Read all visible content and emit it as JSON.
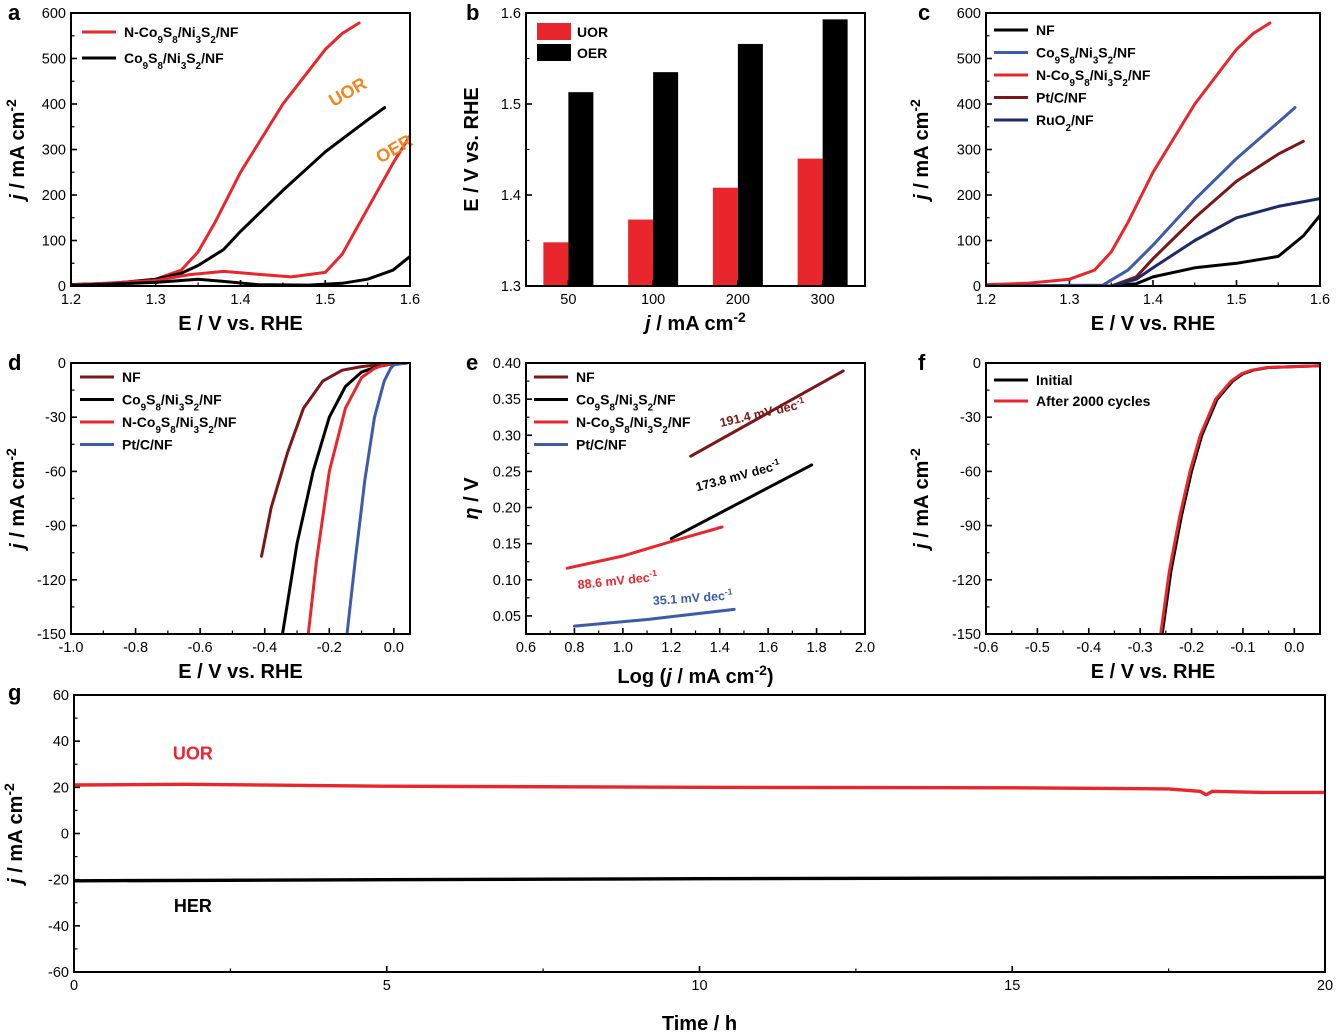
{
  "colors": {
    "red": "#e8262b",
    "black": "#000000",
    "blue": "#3d5ba9",
    "darkred": "#7b1718",
    "navy": "#1f2a6b",
    "orange": "#f0861e"
  },
  "chart_data": [
    {
      "id": "a",
      "panel": "a",
      "type": "line",
      "xlabel": "E / V vs. RHE",
      "ylabel": "j / mA cm-2",
      "xlim": [
        1.2,
        1.6
      ],
      "ylim": [
        0,
        600
      ],
      "xticks": [
        "1.2",
        "1.3",
        "1.4",
        "1.5",
        "1.6"
      ],
      "yticks": [
        "0",
        "100",
        "200",
        "300",
        "400",
        "500",
        "600"
      ],
      "legend_position": "top-left",
      "annotations": [
        {
          "text": "UOR",
          "x": 1.53,
          "y": 415,
          "color": "orange"
        },
        {
          "text": "OER",
          "x": 1.585,
          "y": 290,
          "color": "orange"
        }
      ],
      "series": [
        {
          "name": "N-Co9S8/Ni3S2/NF",
          "color": "red",
          "x": [
            1.2,
            1.25,
            1.3,
            1.33,
            1.35,
            1.37,
            1.4,
            1.45,
            1.5,
            1.52,
            1.54
          ],
          "y": [
            3,
            6,
            15,
            35,
            75,
            140,
            250,
            400,
            520,
            555,
            578
          ]
        },
        {
          "name": "Co9S8/Ni3S2/NF",
          "color": "black",
          "x": [
            1.2,
            1.25,
            1.3,
            1.33,
            1.35,
            1.38,
            1.4,
            1.45,
            1.5,
            1.55,
            1.57
          ],
          "y": [
            3,
            6,
            15,
            28,
            45,
            80,
            120,
            210,
            295,
            365,
            392
          ]
        },
        {
          "name": "N-Co9S8/Ni3S2/NF (OER)",
          "color": "red",
          "x": [
            1.2,
            1.3,
            1.34,
            1.38,
            1.42,
            1.46,
            1.5,
            1.52,
            1.55,
            1.58,
            1.6
          ],
          "y": [
            2,
            12,
            25,
            32,
            26,
            20,
            30,
            70,
            170,
            270,
            330
          ]
        },
        {
          "name": "Co9S8/Ni3S2/NF (OER)",
          "color": "black",
          "x": [
            1.2,
            1.3,
            1.35,
            1.38,
            1.42,
            1.48,
            1.52,
            1.55,
            1.58,
            1.6
          ],
          "y": [
            1,
            8,
            15,
            10,
            3,
            2,
            6,
            15,
            35,
            65
          ]
        }
      ],
      "legend": [
        {
          "label": "N-Co9S8/Ni3S2/NF",
          "color": "red"
        },
        {
          "label": "Co9S8/Ni3S2/NF",
          "color": "black"
        }
      ]
    },
    {
      "id": "b",
      "panel": "b",
      "type": "bar",
      "xlabel": "j / mA cm-2",
      "ylabel": "E / V vs. RHE",
      "ylim": [
        1.3,
        1.6
      ],
      "yticks": [
        "1.3",
        "1.4",
        "1.5",
        "1.6"
      ],
      "categories": [
        "50",
        "100",
        "200",
        "300"
      ],
      "legend_position": "top-left",
      "series": [
        {
          "name": "UOR",
          "color": "red",
          "values": [
            1.348,
            1.373,
            1.408,
            1.44
          ]
        },
        {
          "name": "OER",
          "color": "black",
          "values": [
            1.513,
            1.535,
            1.566,
            1.593
          ]
        }
      ]
    },
    {
      "id": "c",
      "panel": "c",
      "type": "line",
      "xlabel": "E / V vs. RHE",
      "ylabel": "j / mA cm-2",
      "xlim": [
        1.2,
        1.6
      ],
      "ylim": [
        0,
        600
      ],
      "xticks": [
        "1.2",
        "1.3",
        "1.4",
        "1.5",
        "1.6"
      ],
      "yticks": [
        "0",
        "100",
        "200",
        "300",
        "400",
        "500",
        "600"
      ],
      "legend_position": "top-left",
      "series": [
        {
          "name": "NF",
          "color": "black",
          "x": [
            1.2,
            1.35,
            1.38,
            1.4,
            1.45,
            1.5,
            1.55,
            1.58,
            1.6
          ],
          "y": [
            0,
            0,
            5,
            20,
            40,
            50,
            65,
            110,
            155
          ]
        },
        {
          "name": "Co9S8/Ni3S2/NF",
          "color": "blue",
          "x": [
            1.2,
            1.34,
            1.37,
            1.4,
            1.45,
            1.5,
            1.55,
            1.57
          ],
          "y": [
            0,
            2,
            35,
            90,
            190,
            280,
            360,
            392
          ]
        },
        {
          "name": "N-Co9S8/Ni3S2/NF",
          "color": "red",
          "x": [
            1.2,
            1.25,
            1.3,
            1.33,
            1.35,
            1.37,
            1.4,
            1.45,
            1.5,
            1.52,
            1.54
          ],
          "y": [
            3,
            6,
            15,
            35,
            75,
            140,
            250,
            400,
            520,
            555,
            578
          ]
        },
        {
          "name": "Pt/C/NF",
          "color": "darkred",
          "x": [
            1.2,
            1.35,
            1.38,
            1.4,
            1.45,
            1.5,
            1.55,
            1.58
          ],
          "y": [
            0,
            0,
            20,
            60,
            150,
            230,
            290,
            318
          ]
        },
        {
          "name": "RuO2/NF",
          "color": "navy",
          "x": [
            1.2,
            1.35,
            1.38,
            1.4,
            1.45,
            1.5,
            1.55,
            1.6
          ],
          "y": [
            0,
            0,
            15,
            40,
            100,
            150,
            175,
            192
          ]
        }
      ],
      "legend": [
        {
          "label": "NF",
          "color": "black"
        },
        {
          "label": "Co9S8/Ni3S2/NF",
          "color": "blue"
        },
        {
          "label": "N-Co9S8/Ni3S2/NF",
          "color": "red"
        },
        {
          "label": "Pt/C/NF",
          "color": "darkred"
        },
        {
          "label": "RuO2/NF",
          "color": "navy"
        }
      ]
    },
    {
      "id": "d",
      "panel": "d",
      "type": "line",
      "xlabel": "E / V vs. RHE",
      "ylabel": "j / mA cm-2",
      "xlim": [
        -1.0,
        0.05
      ],
      "ylim": [
        -150,
        0
      ],
      "xticks": [
        "-1.0",
        "-0.8",
        "-0.6",
        "-0.4",
        "-0.2",
        "0.0"
      ],
      "yticks": [
        "0",
        "-30",
        "-60",
        "-90",
        "-120",
        "-150"
      ],
      "legend_position": "top-left",
      "series": [
        {
          "name": "NF",
          "color": "darkred",
          "x": [
            -0.41,
            -0.38,
            -0.33,
            -0.28,
            -0.22,
            -0.16,
            -0.1,
            -0.05,
            0.0,
            0.04
          ],
          "y": [
            -107,
            -80,
            -50,
            -25,
            -10,
            -4,
            -2,
            -1,
            -0.5,
            0
          ]
        },
        {
          "name": "Co9S8/Ni3S2/NF",
          "color": "black",
          "x": [
            -0.345,
            -0.3,
            -0.25,
            -0.2,
            -0.15,
            -0.1,
            -0.05,
            -0.02,
            0.0,
            0.04
          ],
          "y": [
            -150,
            -100,
            -60,
            -30,
            -13,
            -5,
            -2,
            -1,
            -0.5,
            0
          ]
        },
        {
          "name": "N-Co9S8/Ni3S2/NF",
          "color": "red",
          "x": [
            -0.265,
            -0.24,
            -0.2,
            -0.15,
            -0.1,
            -0.06,
            -0.03,
            0.0,
            0.04
          ],
          "y": [
            -150,
            -110,
            -60,
            -25,
            -8,
            -3,
            -1,
            -0.5,
            0
          ]
        },
        {
          "name": "Pt/C/NF",
          "color": "blue",
          "x": [
            -0.145,
            -0.12,
            -0.09,
            -0.06,
            -0.03,
            -0.01,
            0.0,
            0.04
          ],
          "y": [
            -150,
            -110,
            -65,
            -30,
            -10,
            -3,
            -1,
            0
          ]
        }
      ],
      "legend": [
        {
          "label": "NF",
          "color": "darkred"
        },
        {
          "label": "Co9S8/Ni3S2/NF",
          "color": "black"
        },
        {
          "label": "N-Co9S8/Ni3S2/NF",
          "color": "red"
        },
        {
          "label": "Pt/C/NF",
          "color": "blue"
        }
      ]
    },
    {
      "id": "e",
      "panel": "e",
      "type": "line",
      "xlabel": "Log (j / mA cm-2)",
      "ylabel": "η / V",
      "xlim": [
        0.6,
        2.0
      ],
      "ylim": [
        0.025,
        0.4
      ],
      "xticks": [
        "0.6",
        "0.8",
        "1.0",
        "1.2",
        "1.4",
        "1.6",
        "1.8",
        "2.0"
      ],
      "yticks": [
        "0.05",
        "0.10",
        "0.15",
        "0.20",
        "0.25",
        "0.30",
        "0.35",
        "0.40"
      ],
      "legend_position": "top-left",
      "series": [
        {
          "name": "NF",
          "color": "darkred",
          "x": [
            1.28,
            1.91
          ],
          "y": [
            0.271,
            0.389
          ]
        },
        {
          "name": "Co9S8/Ni3S2/NF",
          "color": "black",
          "x": [
            1.2,
            1.78
          ],
          "y": [
            0.157,
            0.259
          ]
        },
        {
          "name": "N-Co9S8/Ni3S2/NF",
          "color": "red",
          "x": [
            0.77,
            1.0,
            1.2,
            1.41
          ],
          "y": [
            0.116,
            0.133,
            0.153,
            0.173
          ]
        },
        {
          "name": "Pt/C/NF",
          "color": "blue",
          "x": [
            0.8,
            1.1,
            1.46
          ],
          "y": [
            0.036,
            0.045,
            0.059
          ]
        }
      ],
      "annotations": [
        {
          "text": "191.4 mV dec-1",
          "x": 1.58,
          "y": 0.325,
          "color": "darkred",
          "angle": -13
        },
        {
          "text": "173.8 mV dec-1",
          "x": 1.48,
          "y": 0.238,
          "color": "black",
          "angle": -15
        },
        {
          "text": "88.6 mV dec-1",
          "x": 0.98,
          "y": 0.093,
          "color": "red",
          "angle": -6
        },
        {
          "text": "35.1 mV dec-1",
          "x": 1.29,
          "y": 0.069,
          "color": "blue",
          "angle": -4
        }
      ],
      "legend": [
        {
          "label": "NF",
          "color": "darkred"
        },
        {
          "label": "Co9S8/Ni3S2/NF",
          "color": "black"
        },
        {
          "label": "N-Co9S8/Ni3S2/NF",
          "color": "red"
        },
        {
          "label": "Pt/C/NF",
          "color": "blue"
        }
      ]
    },
    {
      "id": "f",
      "panel": "f",
      "type": "line",
      "xlabel": "E / V vs. RHE",
      "ylabel": "j / mA cm-2",
      "xlim": [
        -0.6,
        0.05
      ],
      "ylim": [
        -150,
        0
      ],
      "xticks": [
        "-0.6",
        "-0.5",
        "-0.4",
        "-0.3",
        "-0.2",
        "-0.1",
        "0.0"
      ],
      "yticks": [
        "0",
        "-30",
        "-60",
        "-90",
        "-120",
        "-150"
      ],
      "legend_position": "top-left",
      "series": [
        {
          "name": "Initial",
          "color": "black",
          "x": [
            -0.257,
            -0.24,
            -0.22,
            -0.2,
            -0.18,
            -0.15,
            -0.12,
            -0.1,
            -0.08,
            -0.05,
            0.0,
            0.05
          ],
          "y": [
            -150,
            -115,
            -85,
            -60,
            -40,
            -20,
            -10,
            -6,
            -4,
            -2.5,
            -2,
            -1.5
          ]
        },
        {
          "name": "After 2000 cycles",
          "color": "red",
          "x": [
            -0.26,
            -0.243,
            -0.223,
            -0.203,
            -0.183,
            -0.153,
            -0.123,
            -0.103,
            -0.083,
            -0.053,
            0.0,
            0.05
          ],
          "y": [
            -150,
            -115,
            -85,
            -60,
            -40,
            -20,
            -10,
            -6,
            -4,
            -2.5,
            -2,
            -1.5
          ]
        }
      ],
      "legend": [
        {
          "label": "Initial",
          "color": "black"
        },
        {
          "label": "After 2000 cycles",
          "color": "red"
        }
      ]
    },
    {
      "id": "g",
      "panel": "g",
      "type": "line",
      "xlabel": "Time / h",
      "ylabel": "j / mA cm-2",
      "xlim": [
        0,
        20
      ],
      "ylim": [
        -60,
        60
      ],
      "xticks": [
        "0",
        "5",
        "10",
        "15",
        "20"
      ],
      "yticks": [
        "60",
        "40",
        "20",
        "0",
        "-20",
        "-40",
        "-60"
      ],
      "annotations": [
        {
          "text": "UOR",
          "x": 1.9,
          "y": 32,
          "color": "red"
        },
        {
          "text": "HER",
          "x": 1.9,
          "y": -34,
          "color": "black"
        }
      ],
      "series": [
        {
          "name": "UOR",
          "color": "red",
          "x": [
            0,
            1.8,
            5,
            10,
            15,
            17.5,
            18,
            18.1,
            18.2,
            19,
            20
          ],
          "y": [
            21,
            21.3,
            20.5,
            20,
            19.8,
            19.3,
            18.3,
            16.8,
            18.3,
            17.8,
            17.8
          ]
        },
        {
          "name": "HER",
          "color": "black",
          "x": [
            0,
            5,
            10,
            15,
            20
          ],
          "y": [
            -20.5,
            -20,
            -19.6,
            -19.3,
            -19
          ]
        }
      ]
    }
  ]
}
